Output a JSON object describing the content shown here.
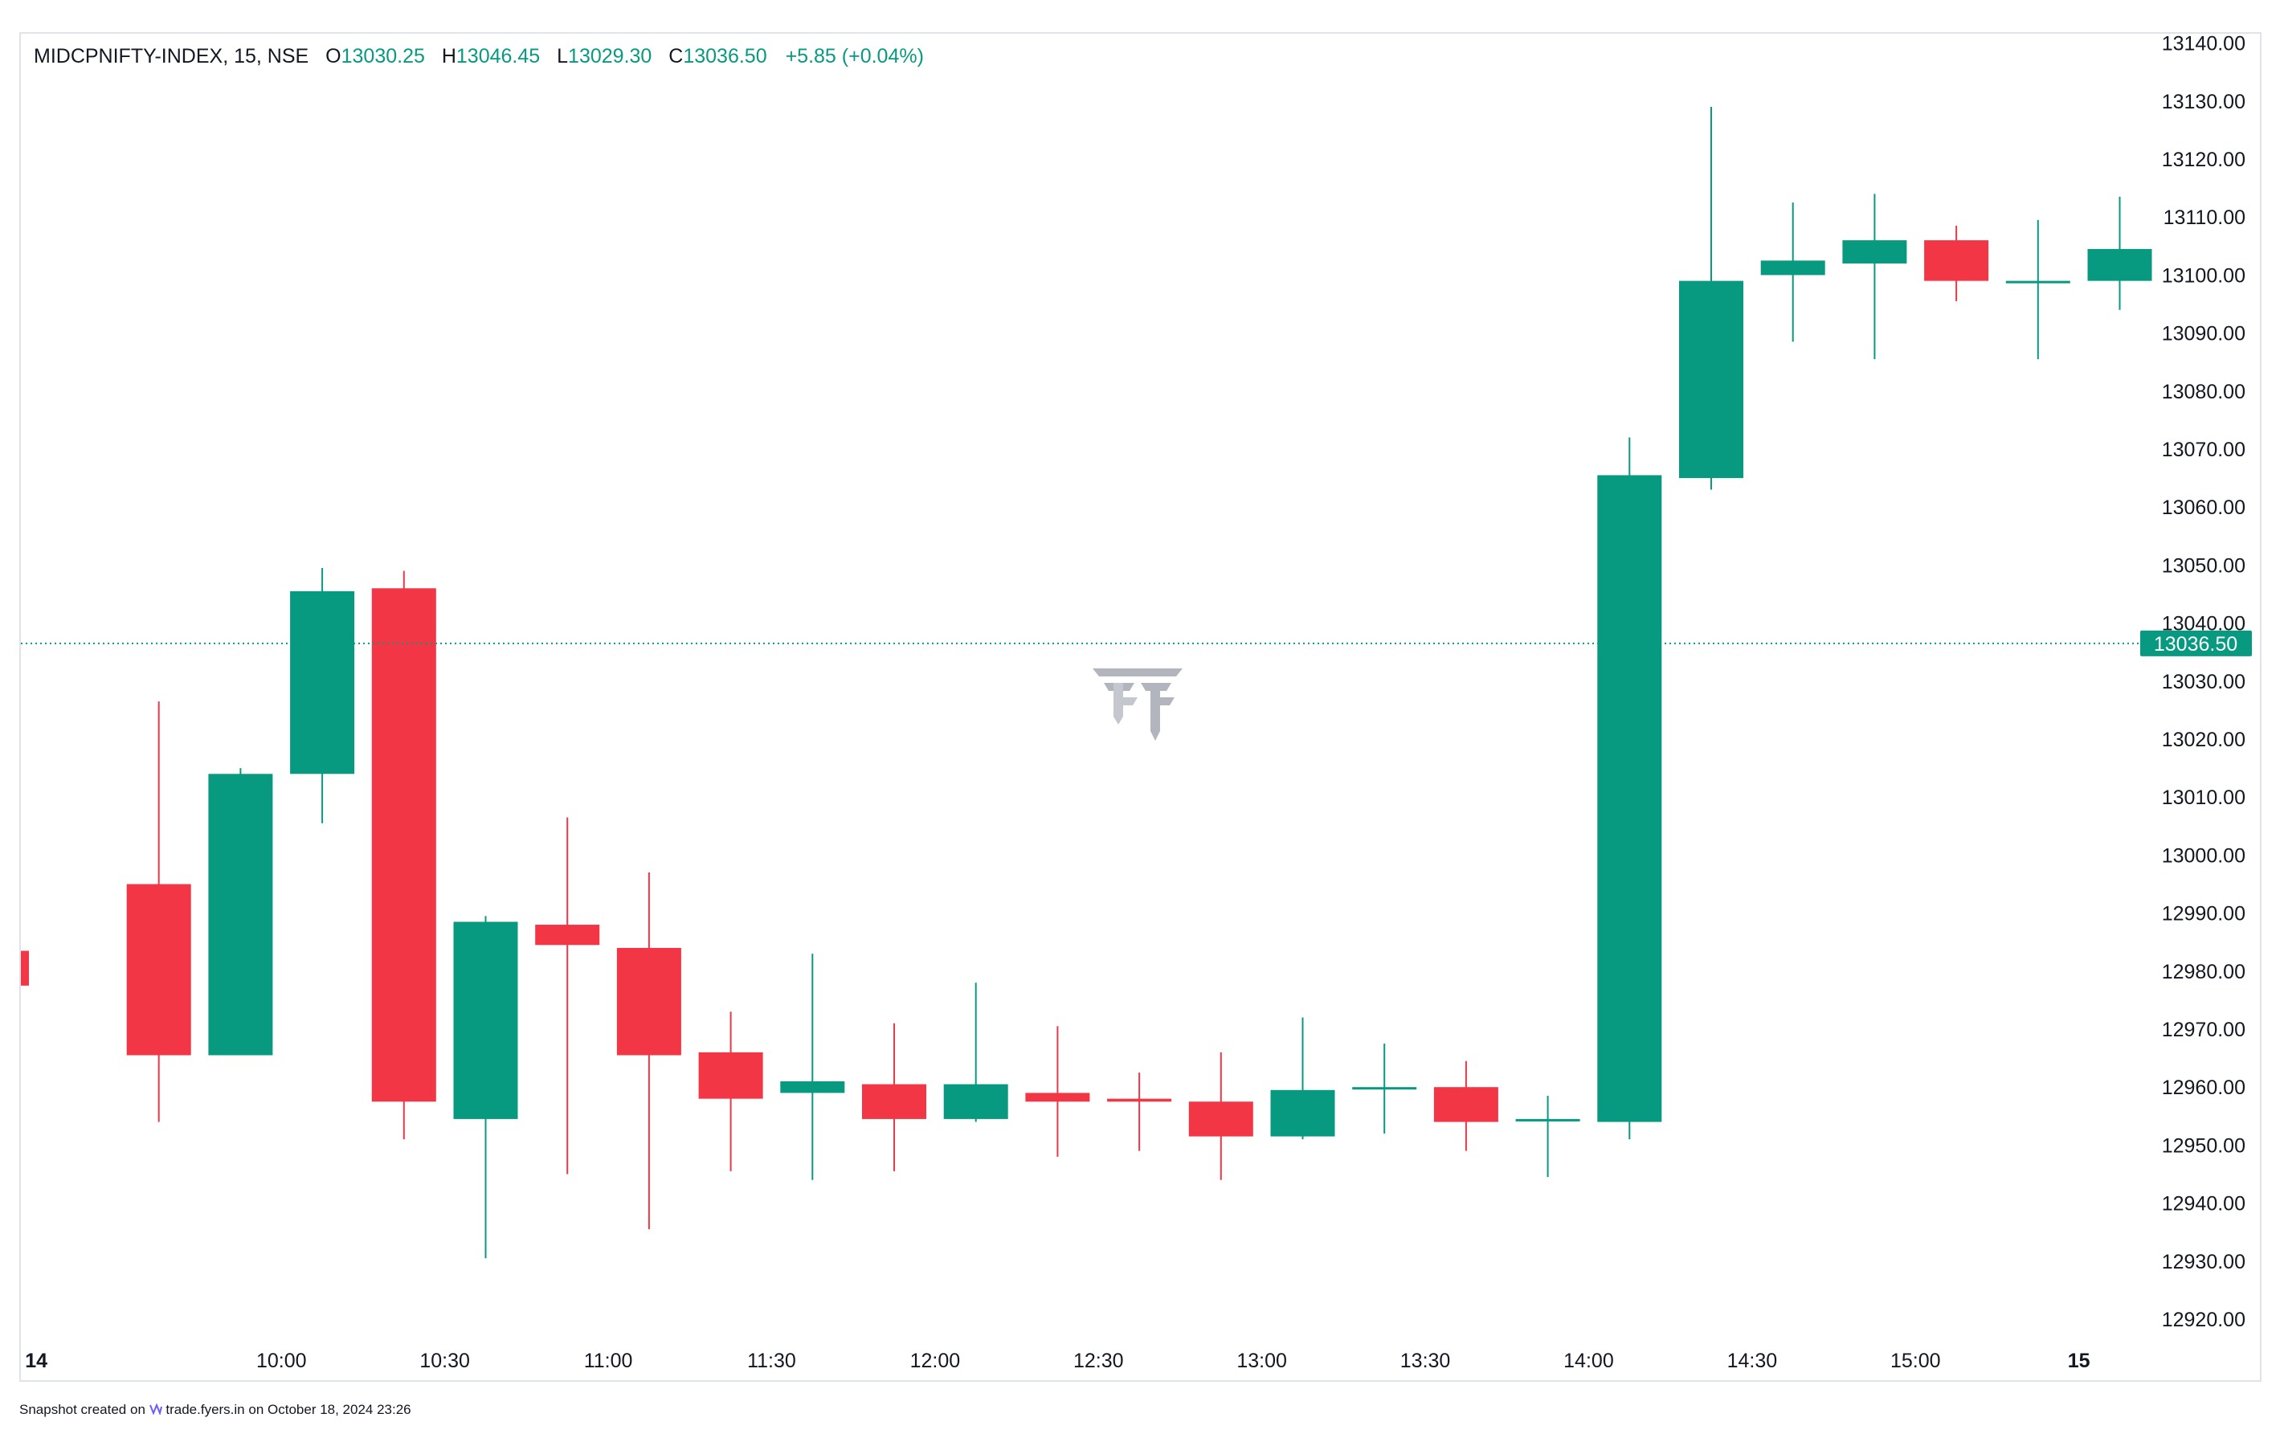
{
  "legend": {
    "symbol": "MIDCPNIFTY-INDEX, 15, NSE",
    "o_label": "O",
    "o_value": "13030.25",
    "h_label": "H",
    "h_value": "13046.45",
    "l_label": "L",
    "l_value": "13029.30",
    "c_label": "C",
    "c_value": "13036.50",
    "change": "+5.85 (+0.04%)"
  },
  "footer": {
    "prefix": "Snapshot created on",
    "brand": "trade.fyers.in",
    "suffix": "on October 18, 2024 23:26"
  },
  "colors": {
    "up": "#089981",
    "down": "#f23645",
    "grid": "#e0e3eb",
    "text": "#131722",
    "watermark": "#b2b5be"
  },
  "icons": {
    "logo": "fyers-logo-icon",
    "brand": "fyers-brand-icon"
  },
  "chart_data": {
    "type": "candlestick",
    "ylim": [
      12915,
      13142
    ],
    "y_ticks": [
      "13140.00",
      "13130.00",
      "13120.00",
      "13110.00",
      "13100.00",
      "13090.00",
      "13080.00",
      "13070.00",
      "13060.00",
      "13050.00",
      "13040.00",
      "13030.00",
      "13020.00",
      "13010.00",
      "13000.00",
      "12990.00",
      "12980.00",
      "12970.00",
      "12960.00",
      "12950.00",
      "12940.00",
      "12930.00",
      "12920.00"
    ],
    "x_ticks": [
      {
        "label": "14",
        "bold": true,
        "index": -0.5
      },
      {
        "label": "10:00",
        "bold": false,
        "index": 2.5
      },
      {
        "label": "10:30",
        "bold": false,
        "index": 4.5
      },
      {
        "label": "11:00",
        "bold": false,
        "index": 6.5
      },
      {
        "label": "11:30",
        "bold": false,
        "index": 8.5
      },
      {
        "label": "12:00",
        "bold": false,
        "index": 10.5
      },
      {
        "label": "12:30",
        "bold": false,
        "index": 12.5
      },
      {
        "label": "13:00",
        "bold": false,
        "index": 14.5
      },
      {
        "label": "13:30",
        "bold": false,
        "index": 16.5
      },
      {
        "label": "14:00",
        "bold": false,
        "index": 18.5
      },
      {
        "label": "14:30",
        "bold": false,
        "index": 20.5
      },
      {
        "label": "15:00",
        "bold": false,
        "index": 22.5
      },
      {
        "label": "15",
        "bold": true,
        "index": 24.5
      }
    ],
    "last_price": "13036.50",
    "last_price_value": 13036.5,
    "candles": [
      {
        "o": 12983.5,
        "h": 12983.5,
        "l": 12977.5,
        "c": 12977.5,
        "partial": true
      },
      {
        "o": 12995.0,
        "h": 13026.5,
        "l": 12954.0,
        "c": 12965.5
      },
      {
        "o": 12965.5,
        "h": 13015.0,
        "l": 12965.5,
        "c": 13014.0
      },
      {
        "o": 13014.0,
        "h": 13049.5,
        "l": 13005.5,
        "c": 13045.5
      },
      {
        "o": 13046.0,
        "h": 13049.0,
        "l": 12951.0,
        "c": 12957.5
      },
      {
        "o": 12954.5,
        "h": 12989.5,
        "l": 12930.5,
        "c": 12988.5
      },
      {
        "o": 12988.0,
        "h": 13006.5,
        "l": 12945.0,
        "c": 12984.5
      },
      {
        "o": 12984.0,
        "h": 12997.0,
        "l": 12935.5,
        "c": 12965.5
      },
      {
        "o": 12966.0,
        "h": 12973.0,
        "l": 12945.5,
        "c": 12958.0
      },
      {
        "o": 12959.0,
        "h": 12983.0,
        "l": 12944.0,
        "c": 12961.0
      },
      {
        "o": 12960.5,
        "h": 12971.0,
        "l": 12945.5,
        "c": 12954.5
      },
      {
        "o": 12954.5,
        "h": 12978.0,
        "l": 12954.0,
        "c": 12960.5
      },
      {
        "o": 12959.0,
        "h": 12970.5,
        "l": 12948.0,
        "c": 12957.5
      },
      {
        "o": 12958.0,
        "h": 12962.5,
        "l": 12949.0,
        "c": 12957.5
      },
      {
        "o": 12957.5,
        "h": 12966.0,
        "l": 12944.0,
        "c": 12951.5
      },
      {
        "o": 12951.5,
        "h": 12972.0,
        "l": 12951.0,
        "c": 12959.5
      },
      {
        "o": 12960.0,
        "h": 12967.5,
        "l": 12952.0,
        "c": 12960.0
      },
      {
        "o": 12960.0,
        "h": 12964.5,
        "l": 12949.0,
        "c": 12954.0
      },
      {
        "o": 12954.5,
        "h": 12958.5,
        "l": 12944.5,
        "c": 12954.5
      },
      {
        "o": 12954.0,
        "h": 13072.0,
        "l": 12951.0,
        "c": 13065.5
      },
      {
        "o": 13065.0,
        "h": 13129.0,
        "l": 13063.0,
        "c": 13099.0
      },
      {
        "o": 13100.0,
        "h": 13112.5,
        "l": 13088.5,
        "c": 13102.5
      },
      {
        "o": 13102.0,
        "h": 13114.0,
        "l": 13085.5,
        "c": 13106.0
      },
      {
        "o": 13106.0,
        "h": 13108.5,
        "l": 13095.5,
        "c": 13099.0
      },
      {
        "o": 13099.0,
        "h": 13109.5,
        "l": 13085.5,
        "c": 13099.0
      },
      {
        "o": 13099.0,
        "h": 13113.5,
        "l": 13094.0,
        "c": 13104.5
      }
    ]
  }
}
